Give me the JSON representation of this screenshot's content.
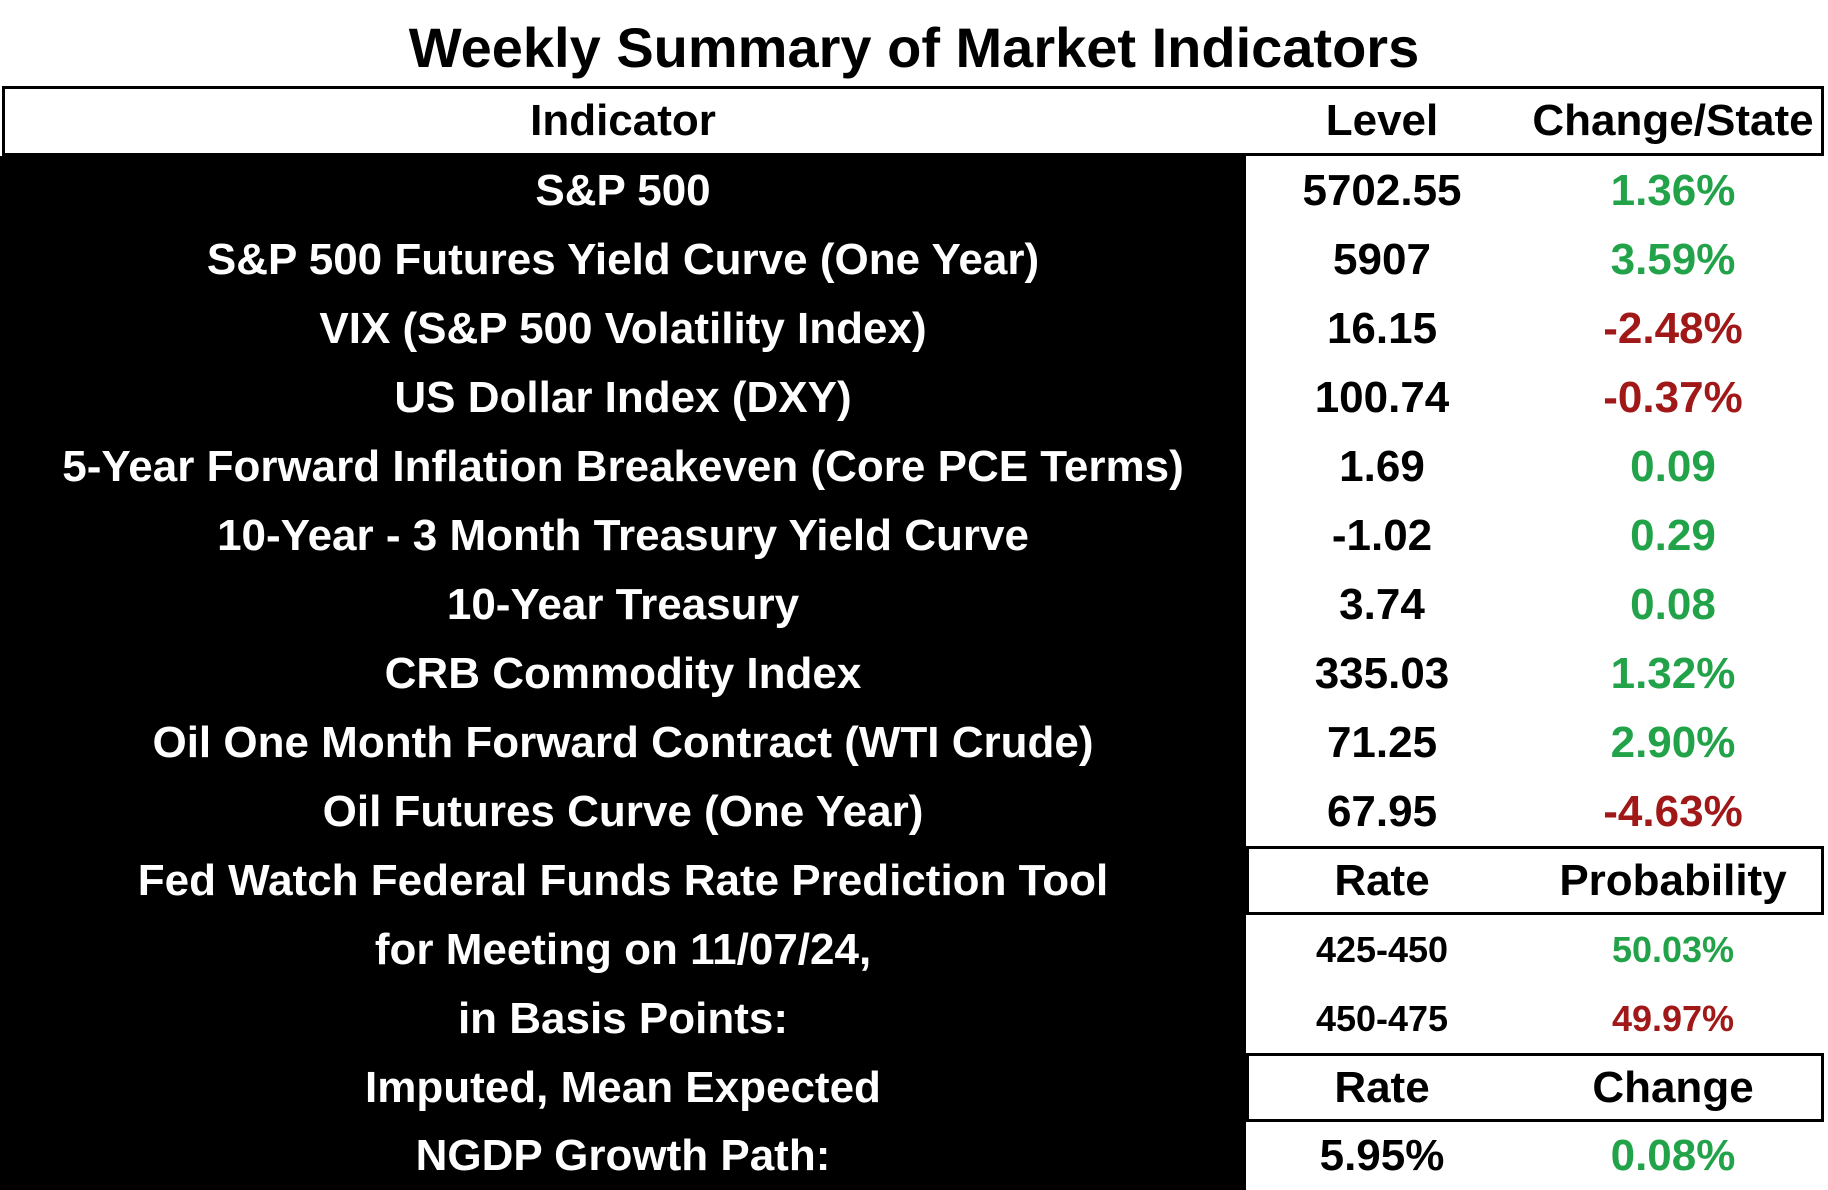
{
  "title": "Weekly Summary of Market Indicators",
  "header": {
    "indicator": "Indicator",
    "level": "Level",
    "change": "Change/State"
  },
  "rows": [
    {
      "indicator": "S&P 500",
      "level": "5702.55",
      "change": "1.36%",
      "sign": "pos"
    },
    {
      "indicator": "S&P 500 Futures Yield Curve (One Year)",
      "level": "5907",
      "change": "3.59%",
      "sign": "pos"
    },
    {
      "indicator": "VIX (S&P 500 Volatility Index)",
      "level": "16.15",
      "change": "-2.48%",
      "sign": "neg"
    },
    {
      "indicator": "US Dollar Index (DXY)",
      "level": "100.74",
      "change": "-0.37%",
      "sign": "neg"
    },
    {
      "indicator": "5-Year Forward Inflation Breakeven (Core PCE Terms)",
      "level": "1.69",
      "change": "0.09",
      "sign": "pos"
    },
    {
      "indicator": "10-Year  - 3 Month Treasury Yield Curve",
      "level": "-1.02",
      "change": "0.29",
      "sign": "pos"
    },
    {
      "indicator": "10-Year Treasury",
      "level": "3.74",
      "change": "0.08",
      "sign": "pos"
    },
    {
      "indicator": "CRB Commodity Index",
      "level": "335.03",
      "change": "1.32%",
      "sign": "pos"
    },
    {
      "indicator": "Oil One Month Forward Contract (WTI Crude)",
      "level": "71.25",
      "change": "2.90%",
      "sign": "pos"
    },
    {
      "indicator": "Oil Futures Curve (One Year)",
      "level": "67.95",
      "change": "-4.63%",
      "sign": "neg"
    }
  ],
  "fedwatch": {
    "line1": "Fed Watch Federal Funds Rate Prediction Tool",
    "line2": "for Meeting on 11/07/24,",
    "line3": "in Basis Points:",
    "rate_header": "Rate",
    "prob_header": "Probability",
    "rows": [
      {
        "rate": "425-450",
        "prob": "50.03%",
        "sign": "pos"
      },
      {
        "rate": "450-475",
        "prob": "49.97%",
        "sign": "neg"
      }
    ]
  },
  "ngdp": {
    "line1": "Imputed, Mean Expected",
    "line2": "NGDP Growth Path:",
    "rate_header": "Rate",
    "change_header": "Change",
    "rate": "5.95%",
    "change": "0.08%",
    "sign": "pos"
  },
  "colors": {
    "positive": "#22a34a",
    "negative": "#a01818"
  }
}
